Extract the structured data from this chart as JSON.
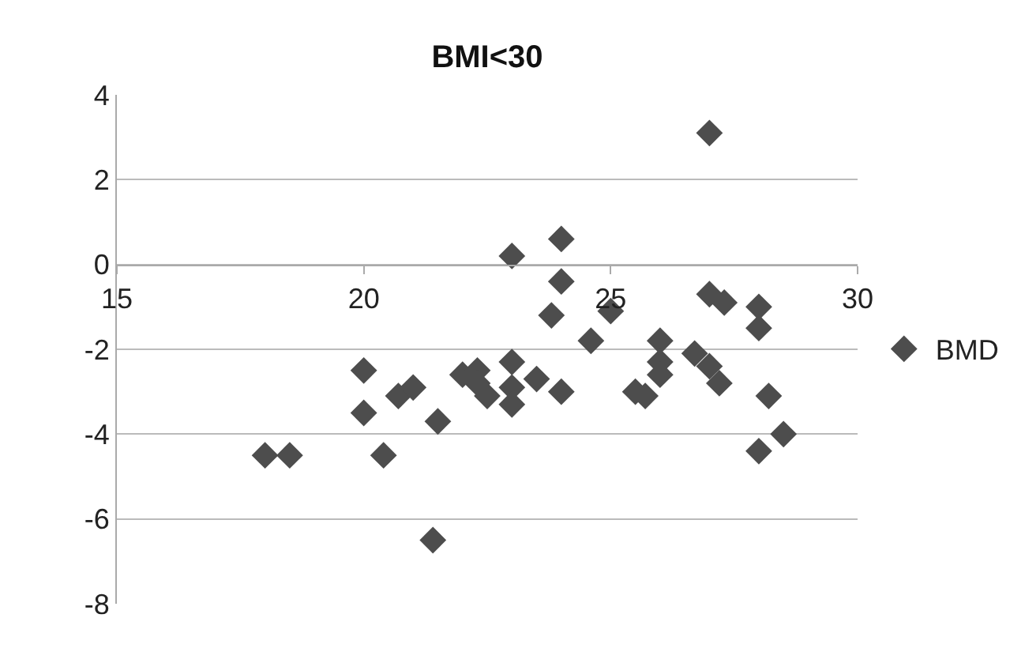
{
  "chart_data": {
    "type": "scatter",
    "title": "BMI<30",
    "marker": "diamond",
    "grid": "y",
    "legend": "right",
    "xlim": [
      15,
      30
    ],
    "xticks": [
      15,
      20,
      25,
      30
    ],
    "ylim": [
      -8,
      4
    ],
    "yticks": [
      -8,
      -6,
      -4,
      -2,
      0,
      2,
      4
    ],
    "series": [
      {
        "name": "BMD",
        "color": "#4d4d4d",
        "x": [
          18.0,
          18.5,
          20.0,
          20.0,
          20.4,
          20.7,
          21.0,
          21.5,
          21.4,
          22.0,
          22.3,
          22.3,
          22.5,
          23.0,
          23.0,
          23.0,
          23.0,
          23.5,
          24.0,
          24.0,
          23.8,
          24.0,
          24.6,
          25.0,
          25.5,
          25.7,
          26.0,
          26.0,
          26.0,
          26.7,
          27.0,
          27.2,
          27.0,
          27.0,
          27.3,
          28.0,
          28.0,
          28.2,
          28.0,
          28.5
        ],
        "values": [
          -4.5,
          -4.5,
          -2.5,
          -3.5,
          -4.5,
          -3.1,
          -2.9,
          -3.7,
          -6.5,
          -2.6,
          -2.5,
          -2.8,
          -3.1,
          -2.3,
          -2.9,
          -3.3,
          0.2,
          -2.7,
          0.6,
          -0.4,
          -1.2,
          -3.0,
          -1.8,
          -1.1,
          -3.0,
          -3.1,
          -1.8,
          -2.3,
          -2.6,
          -2.1,
          -2.4,
          -2.8,
          3.1,
          -0.7,
          -0.9,
          -1.0,
          -1.5,
          -3.1,
          -4.4,
          -4.0
        ]
      }
    ]
  }
}
